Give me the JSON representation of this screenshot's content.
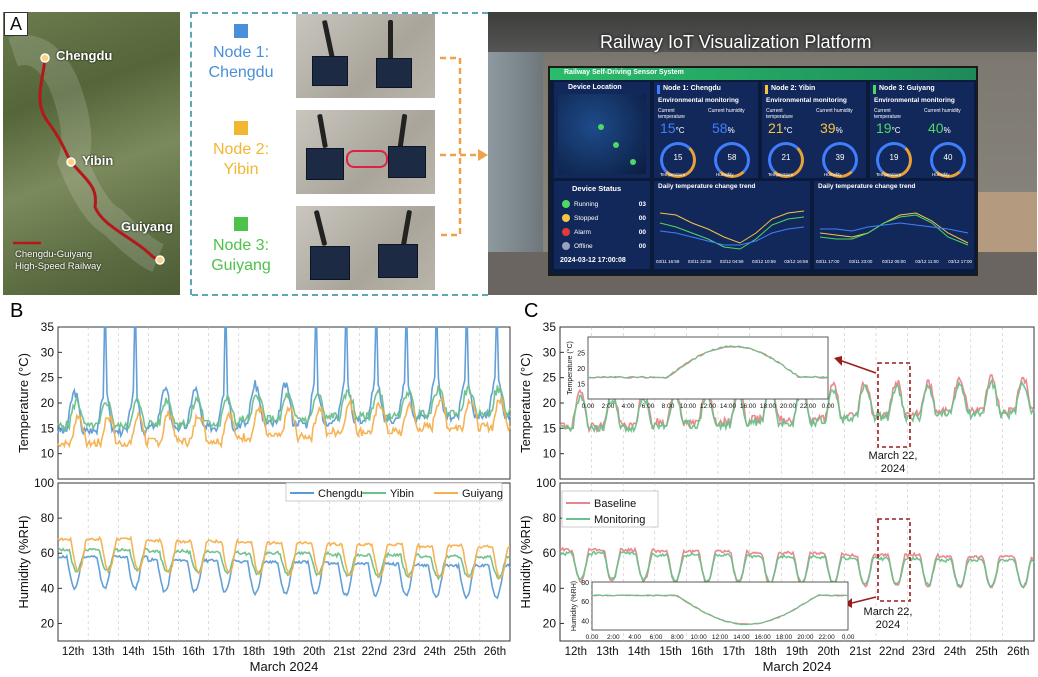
{
  "panel_a": {
    "label": "A",
    "map": {
      "cities": [
        "Chengdu",
        "Yibin",
        "Guiyang"
      ],
      "legend": [
        "Chengdu-Guiyang",
        "High-Speed Railway"
      ]
    },
    "nodes": [
      {
        "line1": "Node 1:",
        "line2": "Chengdu",
        "color": "#4a8fdb"
      },
      {
        "line1": "Node 2:",
        "line2": "Yibin",
        "color": "#f2b731"
      },
      {
        "line1": "Node 3:",
        "line2": "Guiyang",
        "color": "#4cc24a"
      }
    ],
    "platform_title": "Railway IoT Visualization Platform",
    "screen": {
      "header": "Railway Self-Driving Sensor System",
      "device_location": "Device Location",
      "device_status": "Device Status",
      "status": [
        {
          "label": "Running",
          "value": "03",
          "color": "#4cd964"
        },
        {
          "label": "Stopped",
          "value": "00",
          "color": "#f5c542"
        },
        {
          "label": "Alarm",
          "value": "00",
          "color": "#e53935"
        },
        {
          "label": "Offline",
          "value": "00",
          "color": "#9aa0c0"
        }
      ],
      "timestamp": "2024-03-12 17:00:08",
      "env_title": "Environmental monitoring",
      "current_temperature": "Current temperature",
      "current_humidity": "Current humidity",
      "temperature_label": "Temperature",
      "humidity_label": "Humidity",
      "nodes": [
        {
          "title": "Node 1: Chengdu",
          "temp": "15",
          "hum": "58",
          "color": "#3f7fff"
        },
        {
          "title": "Node 2: Yibin",
          "temp": "21",
          "hum": "39",
          "color": "#f5c542"
        },
        {
          "title": "Node 3: Guiyang",
          "temp": "19",
          "hum": "40",
          "color": "#4cd964"
        }
      ],
      "trend_title": "Daily temperature change trend",
      "trend_ticks_1": [
        "03/11 16:59",
        "03/11 22:59",
        "03/12 04:59",
        "03/12 10:59",
        "03/12 16:59"
      ],
      "trend_ticks_2": [
        "03/11 17:00",
        "03/11 23:00",
        "03/12 05:00",
        "03/12 11:00",
        "03/12 17:00"
      ]
    }
  },
  "chart_data": [
    {
      "id": "B_top",
      "type": "line",
      "panel": "B",
      "ylabel": "Temperature (°C)",
      "ylim": [
        5,
        35
      ],
      "yticks": [
        10,
        15,
        20,
        25,
        30,
        35
      ],
      "series": [
        {
          "name": "Chengdu",
          "color": "#5b9bd5",
          "baseline": 14.5,
          "amplitude": 7.5,
          "phase": 0.05,
          "spikes": [
            1,
            2,
            5,
            8,
            9,
            10,
            11,
            12,
            13,
            14
          ],
          "seed": 3,
          "y": [
            14.5,
            15.2,
            16.0,
            16.8,
            17.5,
            18.0
          ]
        },
        {
          "name": "Yibin",
          "color": "#6cc08b",
          "baseline": 15.5,
          "amplitude": 4.8,
          "phase": 0.12,
          "spikes": [],
          "seed": 5,
          "y": [
            15.5,
            16.0,
            16.8,
            17.4,
            18.0,
            18.5
          ]
        },
        {
          "name": "Guiyang",
          "color": "#f4b04f",
          "baseline": 12.0,
          "amplitude": 5.5,
          "phase": 0.18,
          "spikes": [],
          "seed": 7,
          "y": [
            12.0,
            12.5,
            13.4,
            14.3,
            15.2,
            16.0
          ]
        }
      ]
    },
    {
      "id": "B_bottom",
      "type": "line",
      "panel": "B",
      "ylabel": "Humidity (%RH)",
      "ylim": [
        10,
        100
      ],
      "yticks": [
        20,
        40,
        60,
        80,
        100
      ],
      "xlabel": "March 2024",
      "xticks": [
        "12th",
        "13th",
        "14th",
        "15th",
        "16th",
        "17th",
        "18th",
        "19th",
        "20th",
        "21st",
        "22nd",
        "23rd",
        "24th",
        "25th",
        "26th"
      ],
      "legend": [
        "Chengdu",
        "Yibin",
        "Guiyang"
      ],
      "series": [
        {
          "name": "Chengdu",
          "color": "#5b9bd5",
          "baseline": 58,
          "amplitude": -18,
          "phase": 0.05,
          "seed": 11,
          "y": [
            58,
            56,
            55,
            54,
            53,
            52
          ]
        },
        {
          "name": "Yibin",
          "color": "#6cc08b",
          "baseline": 62,
          "amplitude": -12,
          "phase": 0.12,
          "seed": 13,
          "y": [
            62,
            61,
            60,
            59,
            58,
            57
          ]
        },
        {
          "name": "Guiyang",
          "color": "#f4b04f",
          "baseline": 68,
          "amplitude": -18,
          "phase": 0.18,
          "seed": 17,
          "y": [
            68,
            67,
            66,
            65,
            64,
            63
          ]
        }
      ]
    },
    {
      "id": "C_top",
      "type": "line",
      "panel": "C",
      "ylabel": "Temperature (°C)",
      "ylim": [
        5,
        35
      ],
      "yticks": [
        10,
        15,
        20,
        25,
        30,
        35
      ],
      "annotation": "March 22, 2024",
      "series": [
        {
          "name": "Baseline",
          "color": "#e8848a",
          "baseline": 15.5,
          "amplitude": 6.5,
          "phase": 0.15,
          "seed": 19,
          "y": [
            15.5,
            16.0,
            16.8,
            17.6,
            18.5,
            19.0
          ]
        },
        {
          "name": "Monitoring",
          "color": "#6cc08b",
          "baseline": 15.0,
          "amplitude": 6.0,
          "phase": 0.15,
          "seed": 23,
          "y": [
            15.0,
            15.6,
            16.4,
            17.2,
            18.0,
            18.6
          ]
        }
      ],
      "inset": {
        "ylabel": "Temperature (°C)",
        "ylim": [
          10,
          30
        ],
        "yticks": [
          15,
          20,
          25
        ],
        "xticks": [
          "0.00",
          "2:00",
          "4:00",
          "6:00",
          "8:00",
          "10:00",
          "12:00",
          "14:00",
          "16:00",
          "18:00",
          "20:00",
          "22:00",
          "0.00"
        ]
      }
    },
    {
      "id": "C_bottom",
      "type": "line",
      "panel": "C",
      "ylabel": "Humidity (%RH)",
      "ylim": [
        10,
        100
      ],
      "yticks": [
        20,
        40,
        60,
        80,
        100
      ],
      "xlabel": "March 2024",
      "xticks": [
        "12th",
        "13th",
        "14th",
        "15th",
        "16th",
        "17th",
        "18th",
        "19th",
        "20th",
        "21st",
        "22nd",
        "23rd",
        "24th",
        "25th",
        "26th"
      ],
      "legend": [
        "Baseline",
        "Monitoring"
      ],
      "annotation": "March 22, 2024",
      "series": [
        {
          "name": "Baseline",
          "color": "#e8848a",
          "baseline": 62,
          "amplitude": -18,
          "phase": 0.15,
          "seed": 29,
          "y": [
            62,
            61,
            60,
            59,
            58,
            57
          ]
        },
        {
          "name": "Monitoring",
          "color": "#6cc08b",
          "baseline": 60,
          "amplitude": -15,
          "phase": 0.15,
          "seed": 31,
          "y": [
            60,
            59,
            58,
            57,
            56,
            55
          ]
        }
      ],
      "inset": {
        "ylabel": "Humidity (%RH)",
        "ylim": [
          30,
          80
        ],
        "yticks": [
          40,
          60,
          80
        ],
        "xticks": [
          "0.00",
          "2:00",
          "4:00",
          "6:00",
          "8:00",
          "10:00",
          "12:00",
          "14:00",
          "16:00",
          "18:00",
          "20:00",
          "22:00",
          "0.00"
        ]
      }
    }
  ],
  "panel_labels": {
    "b": "B",
    "c": "C"
  }
}
